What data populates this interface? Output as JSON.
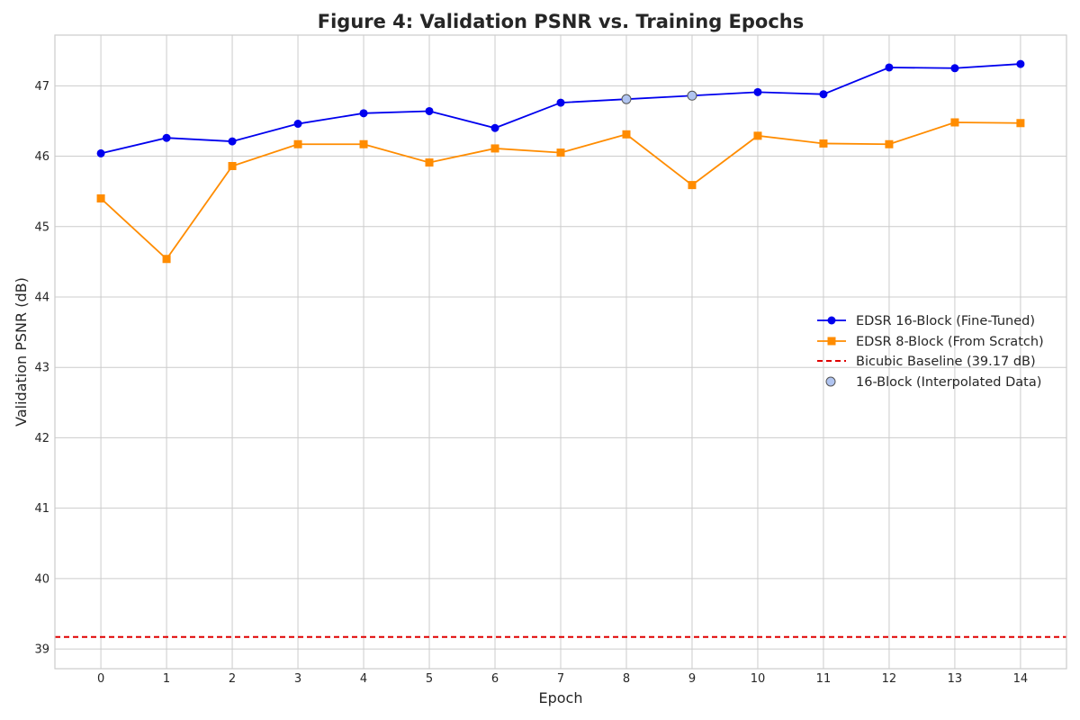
{
  "chart_data": {
    "type": "line",
    "title": "Figure 4: Validation PSNR vs. Training Epochs",
    "xlabel": "Epoch",
    "ylabel": "Validation PSNR (dB)",
    "x": [
      0,
      1,
      2,
      3,
      4,
      5,
      6,
      7,
      8,
      9,
      10,
      11,
      12,
      13,
      14
    ],
    "xlim": [
      -0.7,
      14.7
    ],
    "ylim": [
      38.72,
      47.72
    ],
    "x_ticks": [
      "0",
      "1",
      "2",
      "3",
      "4",
      "5",
      "6",
      "7",
      "8",
      "9",
      "10",
      "11",
      "12",
      "13",
      "14"
    ],
    "y_ticks": [
      39,
      40,
      41,
      42,
      43,
      44,
      45,
      46,
      47
    ],
    "grid": true,
    "legend_position": "center-right",
    "series": [
      {
        "name": "EDSR 16-Block (Fine-Tuned)",
        "marker": "circle",
        "color": "#0000ee",
        "values": [
          46.04,
          46.26,
          46.21,
          46.46,
          46.61,
          46.64,
          46.4,
          46.76,
          46.81,
          46.86,
          46.91,
          46.88,
          47.26,
          47.25,
          47.31
        ]
      },
      {
        "name": "EDSR 8-Block (From Scratch)",
        "marker": "square",
        "color": "#ff8c00",
        "values": [
          45.4,
          44.54,
          45.86,
          46.17,
          46.17,
          45.91,
          46.11,
          46.05,
          46.31,
          45.59,
          46.29,
          46.18,
          46.17,
          46.48,
          46.47
        ]
      }
    ],
    "baseline": {
      "name": "Bicubic Baseline (39.17 dB)",
      "value": 39.17,
      "color": "#e00000",
      "style": "dashed"
    },
    "interpolated": {
      "name": "16-Block (Interpolated Data)",
      "color": "#b0c4f0",
      "edge_color": "#555555",
      "x": [
        8,
        9
      ],
      "values": [
        46.81,
        46.86
      ]
    }
  }
}
